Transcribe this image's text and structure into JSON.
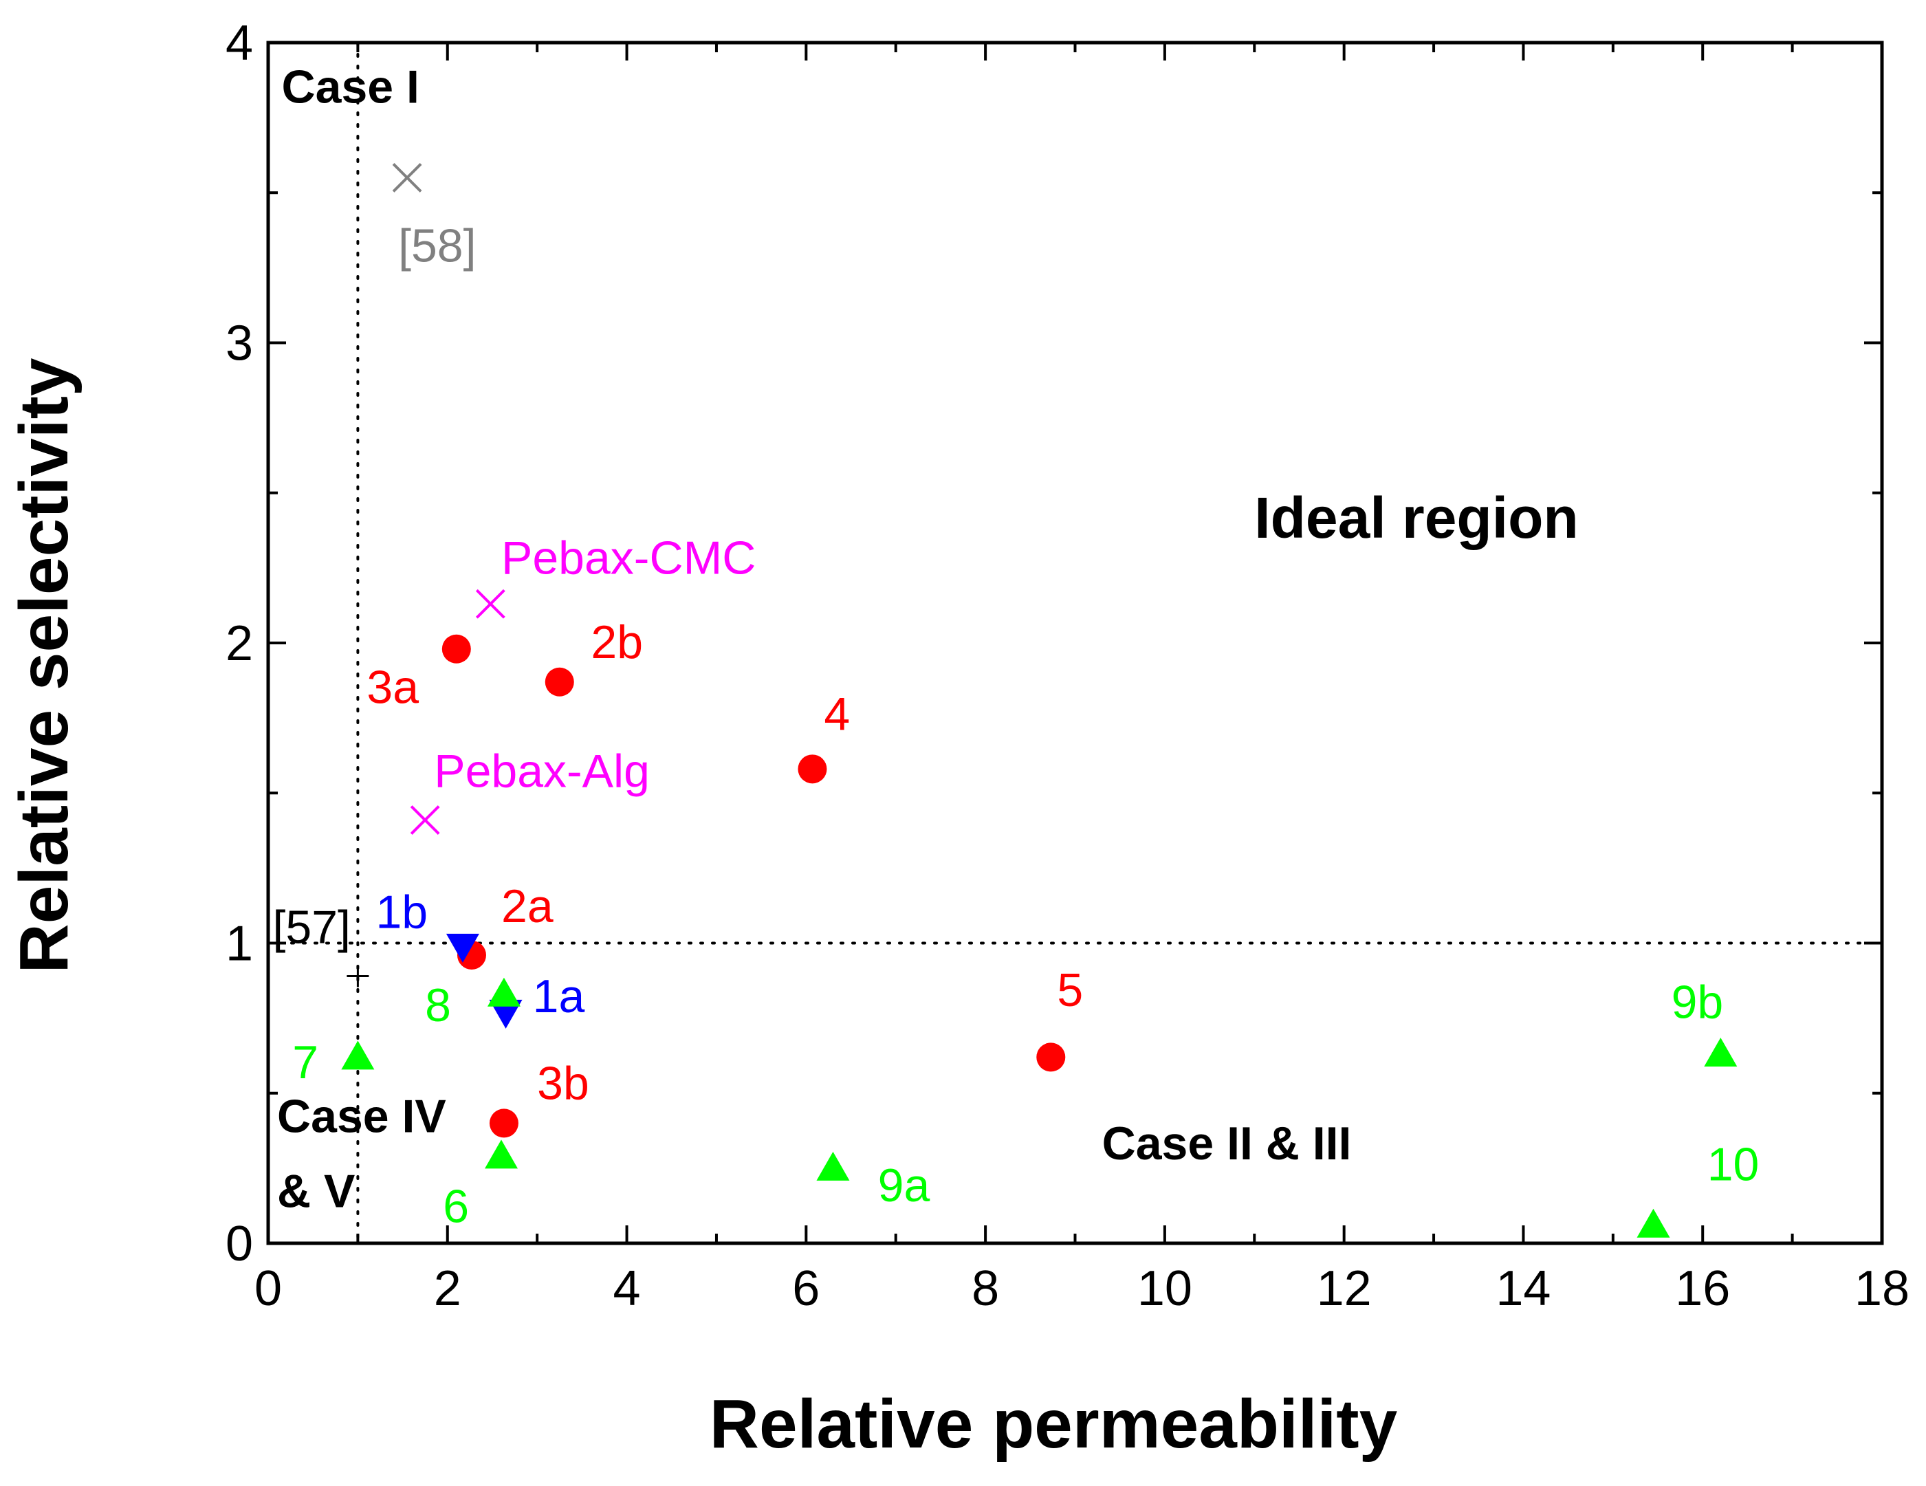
{
  "chart_data": {
    "type": "scatter",
    "xlabel": "Relative permeability",
    "ylabel": "Relative selectivity",
    "xlim": [
      0,
      18
    ],
    "ylim": [
      0,
      4
    ],
    "x_ticks": [
      "0",
      "2",
      "4",
      "6",
      "8",
      "10",
      "12",
      "14",
      "16",
      "18"
    ],
    "y_ticks": [
      "0",
      "1",
      "2",
      "3",
      "4"
    ],
    "reference_lines": {
      "x": 1,
      "y": 1,
      "style": "dotted"
    },
    "regions": [
      {
        "label": "Case I",
        "x": 0.15,
        "y": 3.8
      },
      {
        "label": "Ideal region",
        "x": 11,
        "y": 2.35
      },
      {
        "label": "Case II & III",
        "x": 9.3,
        "y": 0.28
      },
      {
        "label": "Case IV",
        "x": 0.1,
        "y": 0.37
      },
      {
        "label": "& V",
        "x": 0.1,
        "y": 0.12
      }
    ],
    "series": [
      {
        "name": "red circles",
        "marker": "circle",
        "color": "#ff0000",
        "points": [
          {
            "label": "2a",
            "x": 2.27,
            "y": 0.96,
            "lx": 2.6,
            "ly": 1.07
          },
          {
            "label": "2b",
            "x": 3.25,
            "y": 1.87,
            "lx": 3.6,
            "ly": 1.95
          },
          {
            "label": "3a",
            "x": 2.1,
            "y": 1.98,
            "lx": 1.1,
            "ly": 1.8
          },
          {
            "label": "3b",
            "x": 2.63,
            "y": 0.4,
            "lx": 3.0,
            "ly": 0.48
          },
          {
            "label": "4",
            "x": 6.07,
            "y": 1.58,
            "lx": 6.2,
            "ly": 1.71
          },
          {
            "label": "5",
            "x": 8.73,
            "y": 0.62,
            "lx": 8.8,
            "ly": 0.79
          }
        ]
      },
      {
        "name": "blue down triangles",
        "marker": "triangle-down",
        "color": "#0000ff",
        "points": [
          {
            "label": "1a",
            "x": 2.65,
            "y": 0.77,
            "lx": 2.95,
            "ly": 0.77
          },
          {
            "label": "1b",
            "x": 2.17,
            "y": 0.99,
            "lx": 1.2,
            "ly": 1.05
          }
        ]
      },
      {
        "name": "green up triangles",
        "marker": "triangle-up",
        "color": "#00ff00",
        "points": [
          {
            "label": "6",
            "x": 2.6,
            "y": 0.29,
            "lx": 1.95,
            "ly": 0.07
          },
          {
            "label": "7",
            "x": 1.0,
            "y": 0.62,
            "lx": 0.27,
            "ly": 0.55
          },
          {
            "label": "8",
            "x": 2.63,
            "y": 0.83,
            "lx": 1.75,
            "ly": 0.74
          },
          {
            "label": "9a",
            "x": 6.3,
            "y": 0.25,
            "lx": 6.8,
            "ly": 0.14
          },
          {
            "label": "9b",
            "x": 16.2,
            "y": 0.63,
            "lx": 15.65,
            "ly": 0.75
          },
          {
            "label": "10",
            "x": 15.45,
            "y": 0.06,
            "lx": 16.05,
            "ly": 0.21
          }
        ]
      },
      {
        "name": "magenta crosses",
        "marker": "x",
        "color": "#ff00ff",
        "points": [
          {
            "label": "Pebax-CMC",
            "x": 2.48,
            "y": 2.13,
            "lx": 2.6,
            "ly": 2.23
          },
          {
            "label": "Pebax-Alg",
            "x": 1.75,
            "y": 1.41,
            "lx": 1.85,
            "ly": 1.52
          }
        ]
      },
      {
        "name": "gray cross",
        "marker": "x",
        "color": "#808080",
        "points": [
          {
            "label": "[58]",
            "x": 1.55,
            "y": 3.55,
            "lx": 1.45,
            "ly": 3.27
          }
        ]
      },
      {
        "name": "black plus",
        "marker": "plus",
        "color": "#000000",
        "points": [
          {
            "label": "[57]",
            "x": 1.0,
            "y": 0.89,
            "lx": 0.05,
            "ly": 1.0
          }
        ]
      }
    ]
  }
}
